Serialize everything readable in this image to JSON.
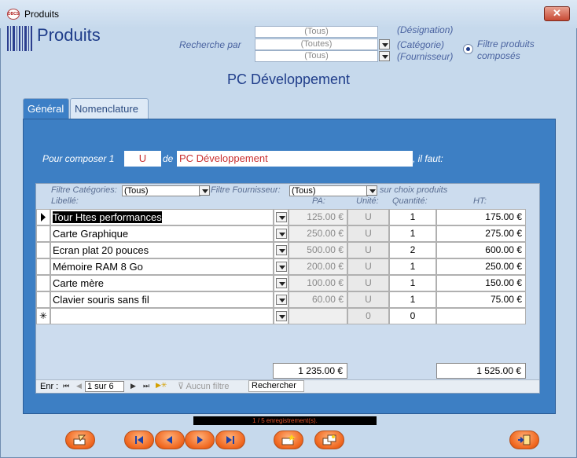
{
  "window": {
    "title": "Produits",
    "close_label": "✕",
    "app_icon_text": "DBCS"
  },
  "header": {
    "page_title": "Produits",
    "search_label": "Recherche par",
    "designation": {
      "value": "(Tous)",
      "hint": "(Désignation)"
    },
    "categorie": {
      "value": "(Toutes)",
      "hint": "(Catégorie)"
    },
    "fournisseur": {
      "value": "(Tous)",
      "hint": "(Fournisseur)"
    },
    "radio_label_1": "Filtre produits",
    "radio_label_2": "composés"
  },
  "product_name": "PC Développement",
  "tabs": [
    {
      "label": "Général",
      "active": true
    },
    {
      "label": "Nomenclature",
      "active": false
    }
  ],
  "compose": {
    "prefix": "Pour composer 1",
    "unit": "U",
    "de": "de",
    "product": "PC Développement",
    "suffix": ", il faut:"
  },
  "subform": {
    "filter_cat_label": "Filtre Catégories:",
    "filter_cat_value": "(Tous)",
    "filter_four_label": "Filtre Fournisseur:",
    "filter_four_value": "(Tous)",
    "filter_suffix": "sur choix produits",
    "columns": {
      "libelle": "Libellé:",
      "pa": "PA:",
      "unite": "Unité:",
      "quantite": "Quantité:",
      "ht": "HT:"
    },
    "rows": [
      {
        "libelle": "Tour Htes performances",
        "pa": "125.00 €",
        "unite": "U",
        "quantite": "1",
        "ht": "175.00 €"
      },
      {
        "libelle": "Carte Graphique",
        "pa": "250.00 €",
        "unite": "U",
        "quantite": "1",
        "ht": "275.00 €"
      },
      {
        "libelle": "Ecran plat 20 pouces",
        "pa": "500.00 €",
        "unite": "U",
        "quantite": "2",
        "ht": "600.00 €"
      },
      {
        "libelle": "Mémoire RAM 8 Go",
        "pa": "200.00 €",
        "unite": "U",
        "quantite": "1",
        "ht": "250.00 €"
      },
      {
        "libelle": "Carte mère",
        "pa": "100.00 €",
        "unite": "U",
        "quantite": "1",
        "ht": "150.00 €"
      },
      {
        "libelle": "Clavier souris sans fil",
        "pa": "60.00 €",
        "unite": "U",
        "quantite": "1",
        "ht": "75.00 €"
      }
    ],
    "new_row": {
      "marker": "✳",
      "unite": "0",
      "quantite": "0"
    },
    "total_pa": "1 235.00 €",
    "total_ht": "1 525.00 €",
    "nav": {
      "label": "Enr :",
      "record": "1 sur 6",
      "no_filter": "Aucun filtre",
      "search": "Rechercher"
    }
  },
  "status_text": "1 / 5 enregistrement(s).",
  "colors": {
    "accent": "#f0661e",
    "panel": "#3d7fc4",
    "title": "#1f3d8a"
  }
}
